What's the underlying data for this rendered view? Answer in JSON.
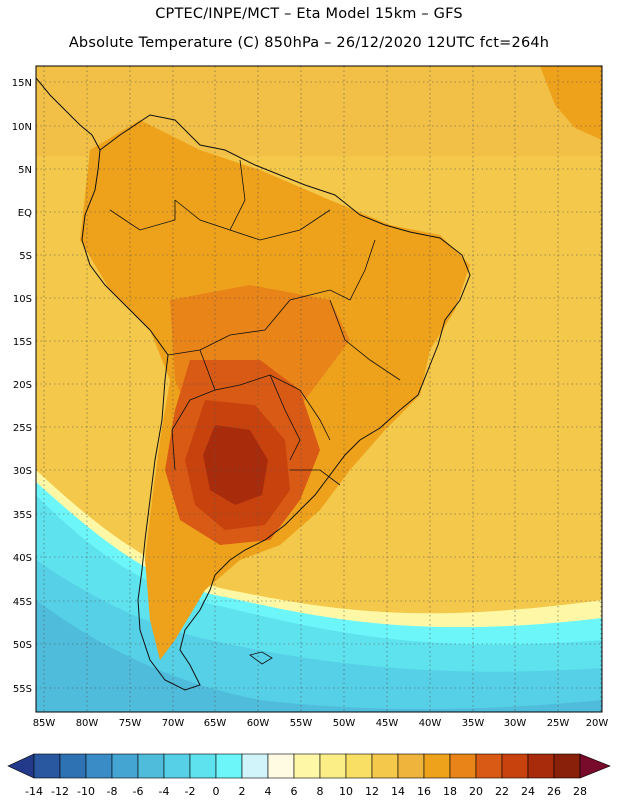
{
  "header": {
    "line1": "CPTEC/INPE/MCT –  Eta Model 15km – GFS",
    "line2": "Absolute Temperature (C) 850hPa – 26/12/2020 12UTC fct=264h"
  },
  "map": {
    "lat_labels": [
      "15N",
      "10N",
      "5N",
      "EQ",
      "5S",
      "10S",
      "15S",
      "20S",
      "25S",
      "30S",
      "35S",
      "40S",
      "45S",
      "50S",
      "55S"
    ],
    "lon_labels": [
      "85W",
      "80W",
      "75W",
      "70W",
      "65W",
      "60W",
      "55W",
      "50W",
      "45W",
      "40W",
      "35W",
      "30W",
      "25W",
      "20W"
    ]
  },
  "colorbar": {
    "tick_labels": [
      "-14",
      "-12",
      "-10",
      "-8",
      "-6",
      "-4",
      "-2",
      "0",
      "2",
      "4",
      "6",
      "8",
      "10",
      "12",
      "14",
      "16",
      "18",
      "20",
      "22",
      "24",
      "26",
      "28"
    ],
    "colors": [
      "#233a8a",
      "#2a58a0",
      "#2f72b4",
      "#3a8cc6",
      "#44a4d2",
      "#4fbcdc",
      "#56d0e6",
      "#5ee2ee",
      "#6cf6fa",
      "#d0f4fa",
      "#fffbe2",
      "#fef8a6",
      "#fcee86",
      "#f9df64",
      "#f4c84a",
      "#efb43c",
      "#eea21c",
      "#e88418",
      "#d95a14",
      "#c8420e",
      "#a82c0c",
      "#88200a",
      "#780a2c"
    ],
    "min_arrow_color": "#233a8a",
    "max_arrow_color": "#780a2c"
  }
}
